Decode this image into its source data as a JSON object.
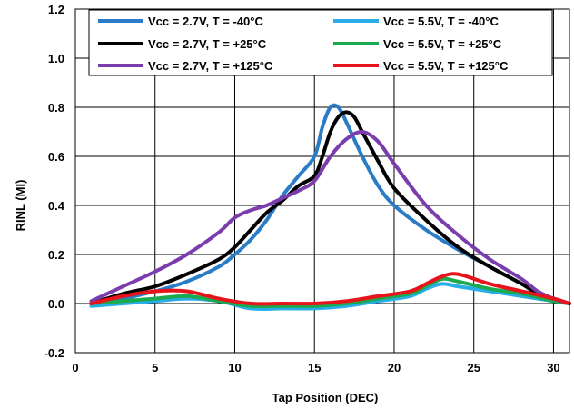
{
  "chart_data": {
    "type": "line",
    "title": "",
    "xlabel": "Tap Position (DEC)",
    "ylabel": "RINL (MI)",
    "xlim": [
      0,
      31
    ],
    "ylim": [
      -0.2,
      1.2
    ],
    "xticks": [
      0,
      5,
      10,
      15,
      20,
      25,
      30
    ],
    "yticks": [
      -0.2,
      0.0,
      0.2,
      0.4,
      0.6,
      0.8,
      1.0,
      1.2
    ],
    "xtick_labels": [
      "0",
      "5",
      "10",
      "15",
      "20",
      "25",
      "30"
    ],
    "ytick_labels": [
      "-0.2",
      "0.0",
      "0.2",
      "0.4",
      "0.6",
      "0.8",
      "1.0",
      "1.2"
    ],
    "grid": true,
    "legend_position": "top",
    "series": [
      {
        "name": "Vcc = 2.7V, T = -40°C",
        "color": "#2A7CC6",
        "x": [
          1,
          3,
          5,
          7,
          9,
          10,
          11,
          12,
          13,
          14,
          15,
          15.5,
          16,
          16.5,
          17,
          18,
          19,
          20,
          22,
          24,
          26,
          28,
          29,
          30,
          31
        ],
        "y": [
          0.0,
          0.02,
          0.05,
          0.09,
          0.15,
          0.2,
          0.26,
          0.34,
          0.44,
          0.52,
          0.6,
          0.72,
          0.8,
          0.8,
          0.74,
          0.6,
          0.48,
          0.4,
          0.3,
          0.22,
          0.15,
          0.08,
          0.04,
          0.02,
          0.0
        ]
      },
      {
        "name": "Vcc = 5.5V, T = -40°C",
        "color": "#29AEE8",
        "x": [
          1,
          3,
          5,
          7,
          9,
          11,
          13,
          15,
          17,
          19,
          21,
          22,
          23,
          24,
          26,
          28,
          30,
          31
        ],
        "y": [
          -0.01,
          0.0,
          0.01,
          0.02,
          0.01,
          -0.02,
          -0.02,
          -0.02,
          -0.01,
          0.01,
          0.03,
          0.06,
          0.08,
          0.07,
          0.05,
          0.03,
          0.01,
          0.0
        ]
      },
      {
        "name": "Vcc = 2.7V, T = +25°C",
        "color": "#000000",
        "x": [
          1,
          3,
          5,
          7,
          9,
          10,
          11,
          12,
          13,
          14,
          15,
          15.5,
          16,
          16.5,
          17,
          17.5,
          18,
          19,
          20,
          22,
          24,
          26,
          28,
          29,
          30,
          31
        ],
        "y": [
          0.0,
          0.04,
          0.07,
          0.12,
          0.18,
          0.23,
          0.3,
          0.37,
          0.42,
          0.48,
          0.52,
          0.6,
          0.7,
          0.76,
          0.78,
          0.76,
          0.7,
          0.58,
          0.47,
          0.34,
          0.23,
          0.15,
          0.08,
          0.04,
          0.02,
          0.0
        ]
      },
      {
        "name": "Vcc = 5.5V, T = +25°C",
        "color": "#1BAA4F",
        "x": [
          1,
          3,
          5,
          7,
          9,
          11,
          13,
          15,
          17,
          19,
          21,
          22,
          23,
          24,
          26,
          28,
          30,
          31
        ],
        "y": [
          0.0,
          0.01,
          0.02,
          0.03,
          0.01,
          -0.01,
          -0.01,
          -0.01,
          0.0,
          0.02,
          0.04,
          0.07,
          0.1,
          0.09,
          0.06,
          0.04,
          0.01,
          0.0
        ]
      },
      {
        "name": "Vcc = 2.7V, T = +125°C",
        "color": "#7B3DAE",
        "x": [
          1,
          3,
          5,
          7,
          9,
          10,
          11,
          12,
          13,
          14,
          15,
          16,
          17,
          18,
          19,
          20,
          22,
          24,
          26,
          28,
          29,
          30,
          31
        ],
        "y": [
          0.01,
          0.07,
          0.13,
          0.2,
          0.29,
          0.35,
          0.38,
          0.4,
          0.43,
          0.46,
          0.5,
          0.6,
          0.67,
          0.7,
          0.66,
          0.57,
          0.4,
          0.28,
          0.18,
          0.1,
          0.05,
          0.02,
          0.0
        ]
      },
      {
        "name": "Vcc = 5.5V, T = +125°C",
        "color": "#E8141B",
        "x": [
          1,
          3,
          5,
          7,
          9,
          11,
          13,
          15,
          17,
          19,
          21,
          22,
          23,
          24,
          26,
          28,
          30,
          31
        ],
        "y": [
          0.0,
          0.03,
          0.05,
          0.05,
          0.02,
          0.0,
          0.0,
          0.0,
          0.01,
          0.03,
          0.05,
          0.08,
          0.11,
          0.12,
          0.08,
          0.05,
          0.02,
          0.0
        ]
      }
    ]
  }
}
